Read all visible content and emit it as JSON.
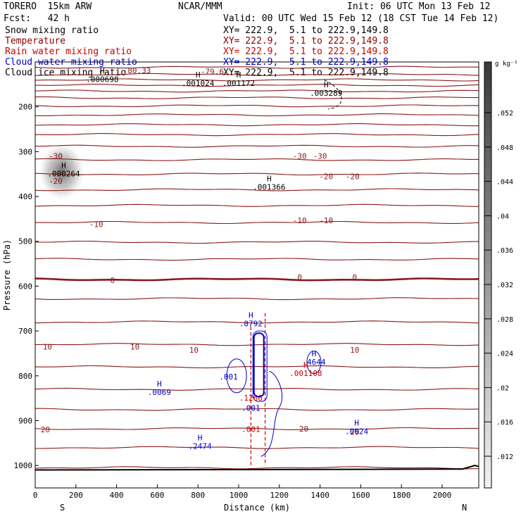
{
  "header": {
    "left1": "TORERO  15km ARW",
    "center1": "NCAR/MMM",
    "right1": "Init: 06 UTC Mon 13 Feb 12",
    "left2": "Fcst:   42 h",
    "right2": "Valid: 00 UTC Wed 15 Feb 12 (18 CST Tue 14 Feb 12)"
  },
  "legend": [
    {
      "label": "Snow mixing ratio",
      "xy": "XY= 222.9,  5.1 to 222.9,149.8",
      "color": "#000000"
    },
    {
      "label": "Temperature",
      "xy": "XY= 222.9,  5.1 to 222.9,149.8",
      "color": "#8b0000"
    },
    {
      "label": "Rain water mixing ratio",
      "xy": "XY= 222.9,  5.1 to 222.9,149.8",
      "color": "#cc0000"
    },
    {
      "label": "Cloud water mixing ratio",
      "xy": "XY= 222.9,  5.1 to 222.9,149.8",
      "color": "#0000cc"
    },
    {
      "label": "Cloud ice mixing ratio",
      "xy": "XY= 222.9,  5.1 to 222.9,149.8",
      "color": "#000000"
    }
  ],
  "colorbar": {
    "unit": "g kg⁻¹",
    "ticks": [
      ".052",
      ".048",
      ".044",
      ".04",
      ".036",
      ".032",
      ".028",
      ".024",
      ".02",
      ".016",
      ".012"
    ]
  },
  "chart_data": {
    "type": "contour",
    "xlabel": "Distance (km)",
    "ylabel": "Pressure (hPa)",
    "xlim": [
      0,
      2180
    ],
    "ylim": [
      1050,
      100
    ],
    "x_ticks": [
      0,
      200,
      400,
      600,
      800,
      1000,
      1200,
      1400,
      1600,
      1800,
      2000
    ],
    "y_ticks": [
      200,
      300,
      400,
      500,
      600,
      700,
      800,
      900,
      1000
    ],
    "x_end_labels": {
      "left": "S",
      "right": "N"
    },
    "temperature_levels": [
      {
        "value": -80.33,
        "labels": [
          {
            "text": "-80.33",
            "x": 500,
            "p": 119
          }
        ]
      },
      {
        "value": -79.6,
        "labels": [
          {
            "text": "-79.6",
            "x": 870,
            "p": 121
          }
        ]
      },
      {
        "value": -30,
        "labels": [
          {
            "text": "-30",
            "x": 100,
            "p": 310
          },
          {
            "text": "-30",
            "x": 1300,
            "p": 310
          },
          {
            "text": "-30",
            "x": 1400,
            "p": 310
          }
        ]
      },
      {
        "value": -20,
        "labels": [
          {
            "text": "-20",
            "x": 100,
            "p": 365
          },
          {
            "text": "-20",
            "x": 1430,
            "p": 355
          },
          {
            "text": "-20",
            "x": 1560,
            "p": 355
          }
        ]
      },
      {
        "value": -10,
        "labels": [
          {
            "text": "-10",
            "x": 300,
            "p": 462
          },
          {
            "text": "-10",
            "x": 1300,
            "p": 453
          },
          {
            "text": "-10",
            "x": 1430,
            "p": 453
          }
        ]
      },
      {
        "value": 0,
        "labels": [
          {
            "text": "0",
            "x": 380,
            "p": 587
          },
          {
            "text": "0",
            "x": 1300,
            "p": 580
          },
          {
            "text": "0",
            "x": 1570,
            "p": 580
          }
        ]
      },
      {
        "value": 10,
        "labels": [
          {
            "text": "10",
            "x": 60,
            "p": 735
          },
          {
            "text": "10",
            "x": 490,
            "p": 735
          },
          {
            "text": "10",
            "x": 780,
            "p": 742
          },
          {
            "text": "10",
            "x": 1570,
            "p": 742
          }
        ]
      },
      {
        "value": 20,
        "labels": [
          {
            "text": "20",
            "x": 50,
            "p": 920
          },
          {
            "text": "20",
            "x": 1320,
            "p": 918
          },
          {
            "text": "20",
            "x": 1570,
            "p": 925
          }
        ]
      }
    ],
    "extrema": [
      {
        "type": "H",
        "value": ".000698",
        "x": 330,
        "p": 145,
        "series": "snow"
      },
      {
        "type": "H",
        "value": ".001024",
        "x": 800,
        "p": 153,
        "series": "snow"
      },
      {
        "type": "H",
        "value": ".001172",
        "x": 1000,
        "p": 153,
        "series": "snow"
      },
      {
        "type": "H",
        "value": ".003289",
        "x": 1430,
        "p": 175,
        "series": "snow"
      },
      {
        "type": "H",
        "value": ".000264",
        "x": 140,
        "p": 355,
        "series": "snow"
      },
      {
        "type": "H",
        "value": ".001366",
        "x": 1150,
        "p": 385,
        "series": "snow"
      },
      {
        "type": "H",
        "value": ".8792",
        "x": 1060,
        "p": 690,
        "series": "cloud_water"
      },
      {
        "type": "H",
        "value": ".4644",
        "x": 1370,
        "p": 775,
        "series": "cloud_water"
      },
      {
        "type": "H",
        "value": ".001108",
        "x": 1330,
        "p": 800,
        "series": "rain"
      },
      {
        "type": "H",
        "value": ".0069",
        "x": 610,
        "p": 843,
        "series": "cloud_water"
      },
      {
        "type": "",
        "value": ".001",
        "x": 950,
        "p": 808,
        "series": "cloud_water"
      },
      {
        "type": "",
        "value": ".1266",
        "x": 1060,
        "p": 855,
        "series": "rain"
      },
      {
        "type": "",
        "value": ".001",
        "x": 1060,
        "p": 878,
        "series": "cloud_water"
      },
      {
        "type": "",
        "value": ".001",
        "x": 1060,
        "p": 925,
        "series": "rain"
      },
      {
        "type": "H",
        "value": ".2474",
        "x": 810,
        "p": 963,
        "series": "cloud_water"
      },
      {
        "type": "H",
        "value": ".0024",
        "x": 1580,
        "p": 930,
        "series": "cloud_water"
      }
    ]
  }
}
